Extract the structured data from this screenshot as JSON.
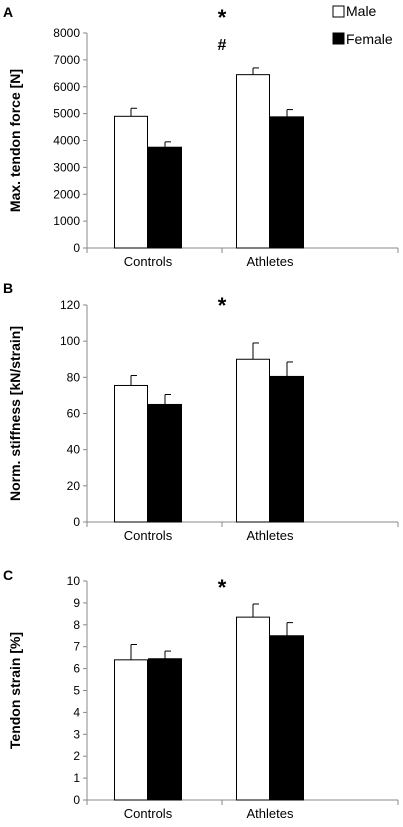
{
  "legend": {
    "male_label": "Male",
    "female_label": "Female",
    "male_color": "#ffffff",
    "female_color": "#000000"
  },
  "chart_data": [
    {
      "type": "bar",
      "panel_label": "A",
      "ylabel": "Max. tendon force [N]",
      "categories": [
        "Controls",
        "Athletes"
      ],
      "ylim": [
        0,
        8000
      ],
      "yticks": [
        0,
        1000,
        2000,
        3000,
        4000,
        5000,
        6000,
        7000,
        8000
      ],
      "series": [
        {
          "name": "Male",
          "values": [
            4900,
            6450
          ],
          "errors": [
            300,
            250
          ]
        },
        {
          "name": "Female",
          "values": [
            3750,
            4880
          ],
          "errors": [
            200,
            270
          ]
        }
      ],
      "annotations": [
        "*",
        "#"
      ]
    },
    {
      "type": "bar",
      "panel_label": "B",
      "ylabel": "Norm. stiffness [kN/strain]",
      "categories": [
        "Controls",
        "Athletes"
      ],
      "ylim": [
        0,
        120
      ],
      "yticks": [
        0,
        20,
        40,
        60,
        80,
        100,
        120
      ],
      "series": [
        {
          "name": "Male",
          "values": [
            75.5,
            90
          ],
          "errors": [
            5.5,
            9
          ]
        },
        {
          "name": "Female",
          "values": [
            65,
            80.5
          ],
          "errors": [
            5.5,
            8
          ]
        }
      ],
      "annotations": [
        "*"
      ]
    },
    {
      "type": "bar",
      "panel_label": "C",
      "ylabel": "Tendon strain [%]",
      "categories": [
        "Controls",
        "Athletes"
      ],
      "ylim": [
        0,
        10
      ],
      "yticks": [
        0,
        1,
        2,
        3,
        4,
        5,
        6,
        7,
        8,
        9,
        10
      ],
      "series": [
        {
          "name": "Male",
          "values": [
            6.4,
            8.35
          ],
          "errors": [
            0.7,
            0.6
          ]
        },
        {
          "name": "Female",
          "values": [
            6.45,
            7.5
          ],
          "errors": [
            0.35,
            0.6
          ]
        }
      ],
      "annotations": [
        "*"
      ]
    }
  ]
}
